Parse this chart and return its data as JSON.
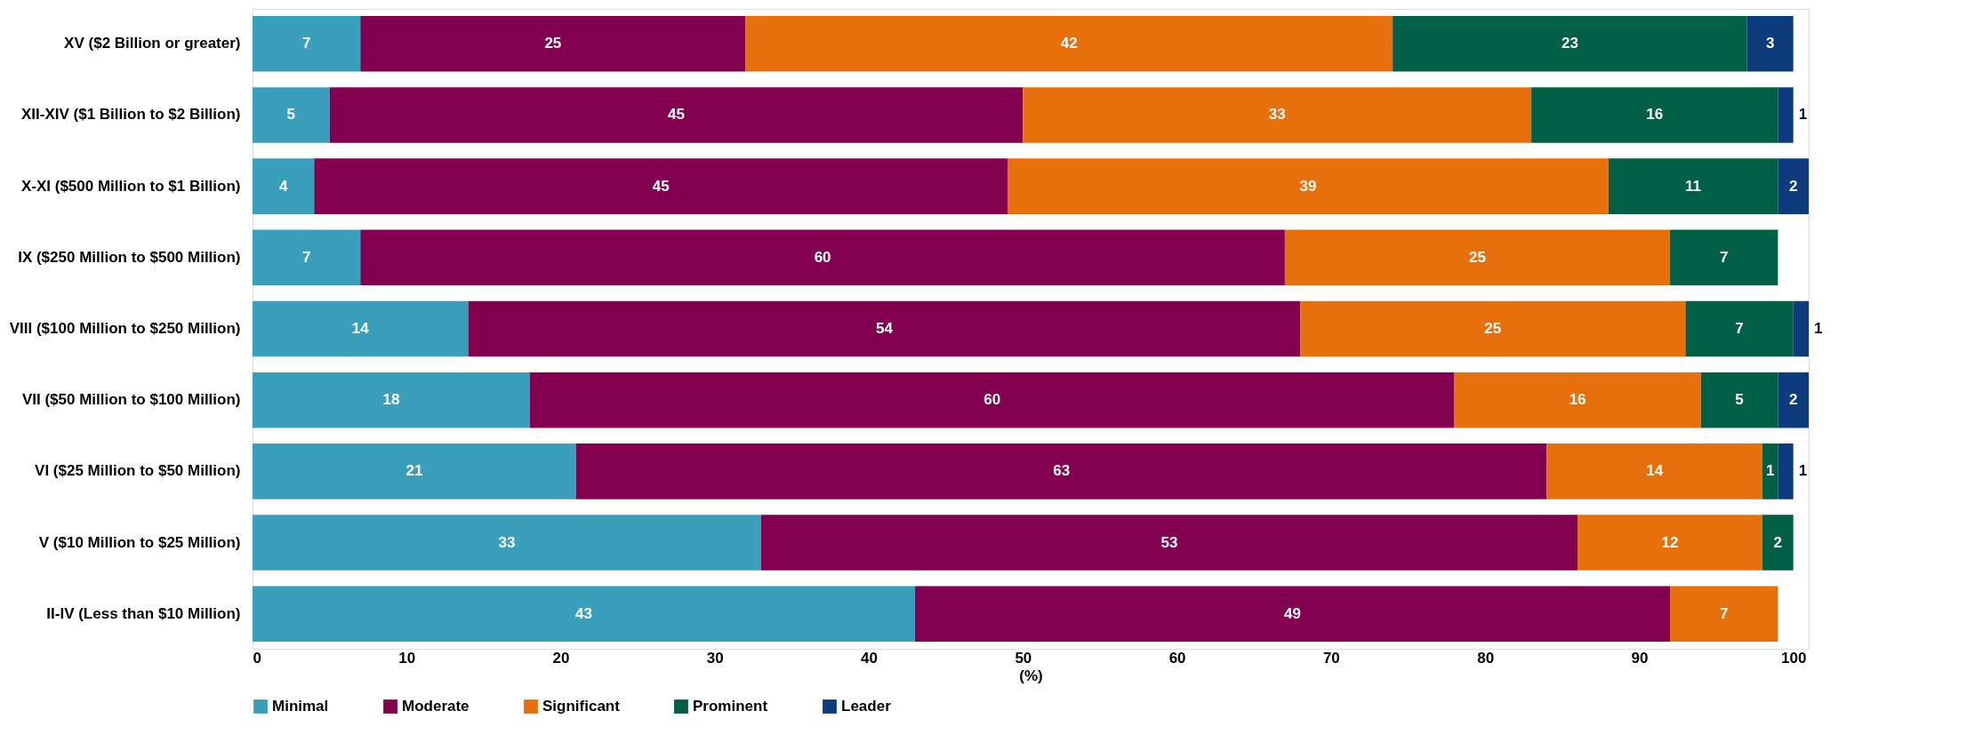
{
  "chart_data": {
    "type": "bar",
    "orientation": "horizontal",
    "stacked": true,
    "data_labels": true,
    "legend": "bottom",
    "grid": false,
    "xlabel": "(%)",
    "categories": [
      "XV ($2 Billion or greater)",
      "XII-XIV ($1 Billion to $2 Billion)",
      "X-XI ($500 Million to $1 Billion)",
      "IX ($250 Million to $500 Million)",
      "VIII ($100 Million to $250 Million)",
      "VII ($50 Million to $100 Million)",
      "VI ($25 Million to $50 Million)",
      "V ($10 Million to $25 Million)",
      "II-IV (Less than $10 Million)"
    ],
    "series": [
      {
        "name": "Minimal",
        "color": "#3a9fba",
        "values": [
          7,
          5,
          4,
          7,
          14,
          18,
          21,
          33,
          43
        ]
      },
      {
        "name": "Moderate",
        "color": "#82004f",
        "values": [
          25,
          45,
          45,
          60,
          54,
          60,
          63,
          53,
          49
        ]
      },
      {
        "name": "Significant",
        "color": "#e8700c",
        "values": [
          42,
          33,
          39,
          25,
          25,
          16,
          14,
          12,
          7
        ]
      },
      {
        "name": "Prominent",
        "color": "#005f45",
        "values": [
          23,
          16,
          11,
          7,
          7,
          5,
          1,
          2,
          null
        ]
      },
      {
        "name": "Leader",
        "color": "#0e3a7e",
        "values": [
          3,
          1,
          2,
          null,
          1,
          2,
          1,
          null,
          null
        ]
      }
    ],
    "xlim": [
      0,
      101
    ],
    "xticks": [
      0,
      10,
      20,
      30,
      40,
      50,
      60,
      70,
      80,
      90,
      100
    ]
  }
}
